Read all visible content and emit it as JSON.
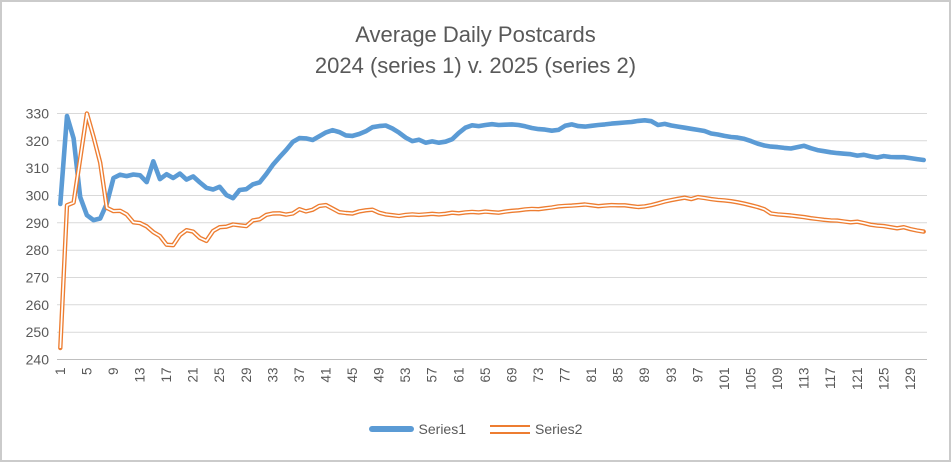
{
  "chart_data": {
    "type": "line",
    "title": "Average Daily Postcards",
    "subtitle": "2024 (series 1) v. 2025 (series 2)",
    "x_count": 131,
    "x_label_start": 1,
    "x_label_step": 4,
    "x_tick_labels": [
      "1",
      "5",
      "9",
      "13",
      "17",
      "21",
      "25",
      "29",
      "33",
      "37",
      "41",
      "45",
      "49",
      "53",
      "57",
      "61",
      "65",
      "69",
      "73",
      "77",
      "81",
      "85",
      "89",
      "93",
      "97",
      "101",
      "105",
      "109",
      "113",
      "117",
      "121",
      "125",
      "129"
    ],
    "ylim": [
      240,
      330
    ],
    "y_ticks": [
      240,
      250,
      260,
      270,
      280,
      290,
      300,
      310,
      320,
      330
    ],
    "grid": "horizontal",
    "grid_color": "#D9D9D9",
    "axis_line_color": "#BFBFBF",
    "text_color": "#595959",
    "legend_position": "bottom-center",
    "series": [
      {
        "name": "Series1",
        "color": "#5B9BD5",
        "line_style": "solid-thick",
        "values": [
          296.9,
          329.1,
          320.9,
          299.4,
          292.8,
          291.0,
          291.6,
          297.0,
          306.4,
          307.6,
          307.1,
          307.7,
          307.4,
          304.9,
          312.5,
          306.0,
          307.8,
          306.4,
          308.0,
          305.8,
          307.0,
          304.8,
          302.8,
          302.2,
          303.2,
          300.2,
          299.0,
          302.0,
          302.3,
          304.1,
          304.8,
          307.8,
          311.2,
          314.0,
          316.6,
          319.6,
          321.0,
          320.9,
          320.3,
          321.7,
          323.1,
          323.9,
          323.2,
          322.0,
          321.8,
          322.5,
          323.5,
          325.0,
          325.4,
          325.6,
          324.5,
          323.0,
          321.2,
          319.9,
          320.4,
          319.3,
          319.8,
          319.3,
          319.7,
          320.6,
          322.9,
          324.8,
          325.7,
          325.4,
          325.8,
          326.1,
          325.8,
          325.9,
          326.0,
          325.8,
          325.3,
          324.7,
          324.3,
          324.1,
          323.7,
          324.0,
          325.5,
          326.0,
          325.4,
          325.2,
          325.5,
          325.8,
          326.0,
          326.3,
          326.5,
          326.7,
          326.9,
          327.3,
          327.5,
          327.2,
          325.8,
          326.2,
          325.6,
          325.2,
          324.8,
          324.4,
          324.0,
          323.6,
          322.7,
          322.3,
          321.8,
          321.4,
          321.2,
          320.7,
          319.9,
          319.0,
          318.3,
          317.9,
          317.7,
          317.4,
          317.2,
          317.7,
          318.2,
          317.3,
          316.6,
          316.2,
          315.8,
          315.5,
          315.3,
          315.1,
          314.6,
          314.9,
          314.3,
          313.9,
          314.4,
          314.1,
          314.0,
          314.0,
          313.7,
          313.3,
          313.0
        ]
      },
      {
        "name": "Series2",
        "color": "#ED7D31",
        "line_style": "double",
        "values": [
          244.2,
          296.4,
          297.4,
          313.5,
          330.0,
          321.5,
          312.0,
          295.5,
          294.3,
          294.4,
          293.1,
          290.2,
          289.9,
          288.7,
          286.6,
          285.2,
          282.0,
          281.8,
          285.5,
          287.3,
          286.8,
          284.5,
          283.4,
          287.0,
          288.4,
          288.6,
          289.4,
          289.1,
          288.8,
          290.9,
          291.3,
          292.9,
          293.4,
          293.5,
          293.0,
          293.4,
          295.0,
          294.2,
          294.8,
          296.2,
          296.5,
          295.2,
          293.9,
          293.6,
          293.4,
          294.2,
          294.6,
          294.8,
          293.7,
          293.1,
          292.8,
          292.5,
          292.9,
          293.1,
          292.9,
          293.1,
          293.3,
          293.1,
          293.3,
          293.7,
          293.5,
          293.8,
          294.0,
          293.8,
          294.1,
          293.9,
          293.7,
          294.1,
          294.4,
          294.6,
          294.9,
          295.1,
          295.0,
          295.3,
          295.6,
          296.0,
          296.2,
          296.3,
          296.5,
          296.7,
          296.4,
          296.1,
          296.3,
          296.5,
          296.4,
          296.4,
          296.1,
          295.8,
          296.0,
          296.5,
          297.1,
          297.8,
          298.3,
          298.8,
          299.2,
          298.7,
          299.4,
          299.1,
          298.7,
          298.4,
          298.2,
          297.9,
          297.5,
          297.0,
          296.4,
          295.8,
          295.0,
          293.4,
          293.1,
          292.9,
          292.7,
          292.4,
          292.1,
          291.7,
          291.4,
          291.1,
          290.9,
          290.8,
          290.5,
          290.2,
          290.4,
          289.9,
          289.3,
          289.0,
          288.8,
          288.4,
          288.0,
          288.4,
          287.7,
          287.2,
          286.8
        ]
      }
    ]
  }
}
